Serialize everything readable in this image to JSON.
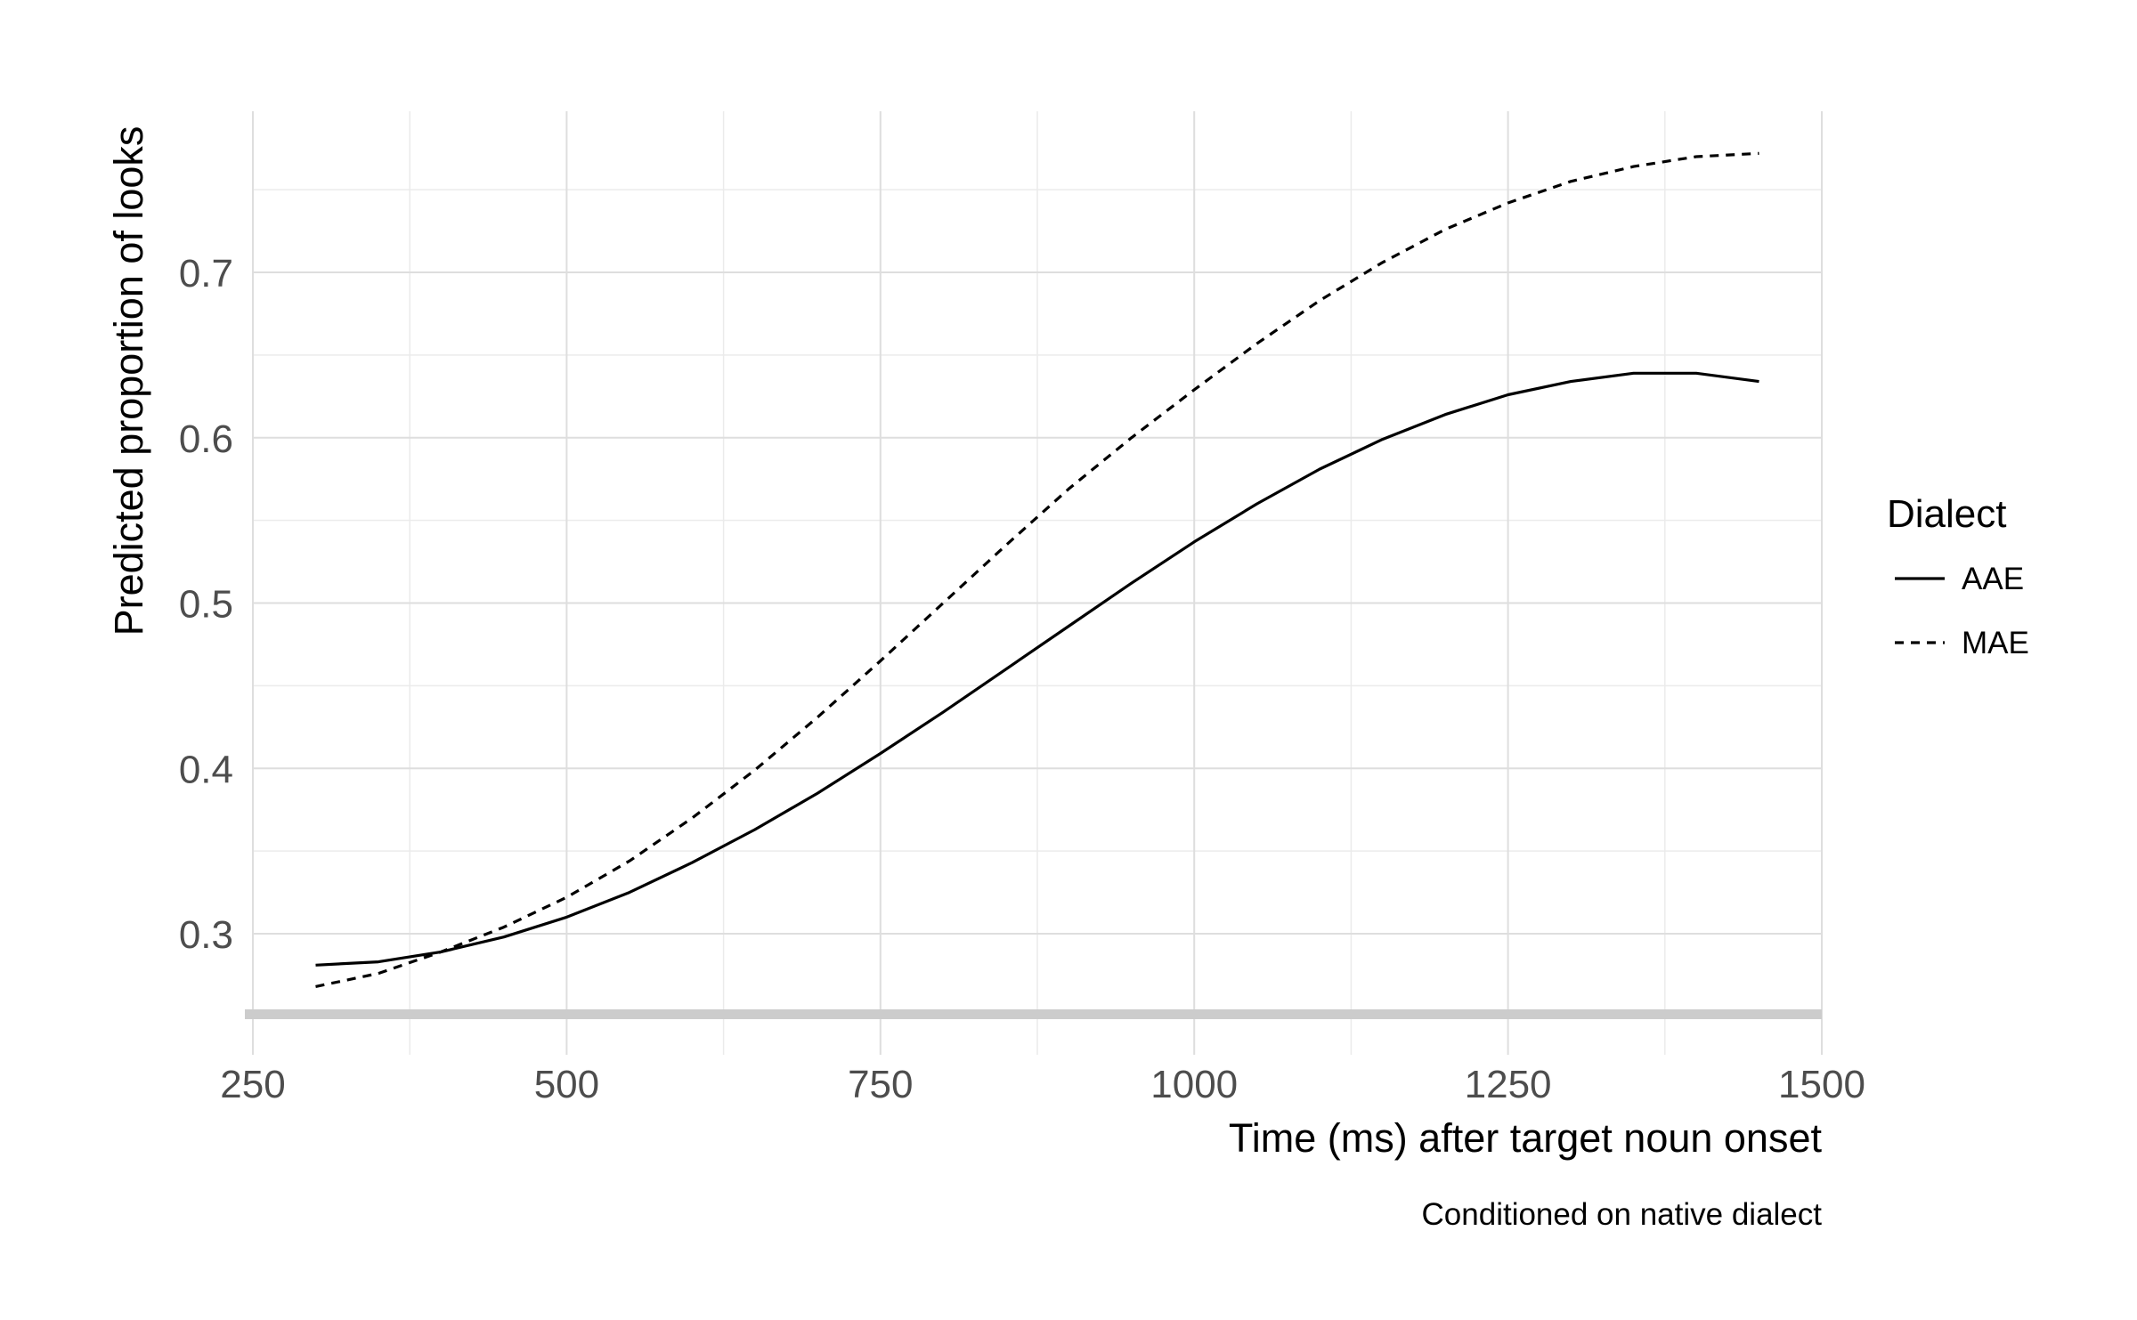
{
  "chart_data": {
    "type": "line",
    "xlabel": "Time (ms) after target noun onset",
    "ylabel": "Predicted proportion of looks",
    "caption": "Conditioned on native dialect",
    "xlim": [
      250,
      1500
    ],
    "ylim": [
      0.25,
      0.8
    ],
    "x_ticks": [
      250,
      500,
      750,
      1000,
      1250,
      1500
    ],
    "y_ticks": [
      0.3,
      0.4,
      0.5,
      0.6,
      0.7
    ],
    "x_tick_labels": [
      "250",
      "500",
      "750",
      "1000",
      "1250",
      "1500"
    ],
    "y_tick_labels": [
      "0.3",
      "0.4",
      "0.5",
      "0.6",
      "0.7"
    ],
    "grid": true,
    "legend": {
      "title": "Dialect",
      "position": "right"
    },
    "series": [
      {
        "name": "AAE",
        "line_style": "solid",
        "x": [
          300,
          350,
          400,
          450,
          500,
          550,
          600,
          650,
          700,
          750,
          800,
          850,
          900,
          950,
          1000,
          1050,
          1100,
          1150,
          1200,
          1250,
          1300,
          1350,
          1400,
          1450
        ],
        "y": [
          0.281,
          0.283,
          0.289,
          0.298,
          0.31,
          0.325,
          0.343,
          0.363,
          0.385,
          0.409,
          0.434,
          0.46,
          0.486,
          0.512,
          0.537,
          0.56,
          0.581,
          0.599,
          0.614,
          0.626,
          0.634,
          0.639,
          0.639,
          0.634
        ]
      },
      {
        "name": "MAE",
        "line_style": "dashed",
        "x": [
          300,
          350,
          400,
          450,
          500,
          550,
          600,
          650,
          700,
          750,
          800,
          850,
          900,
          950,
          1000,
          1050,
          1100,
          1150,
          1200,
          1250,
          1300,
          1350,
          1400,
          1450
        ],
        "y": [
          0.268,
          0.276,
          0.289,
          0.304,
          0.322,
          0.344,
          0.37,
          0.399,
          0.431,
          0.465,
          0.5,
          0.535,
          0.569,
          0.6,
          0.629,
          0.657,
          0.683,
          0.706,
          0.726,
          0.742,
          0.755,
          0.764,
          0.77,
          0.772
        ]
      }
    ]
  }
}
